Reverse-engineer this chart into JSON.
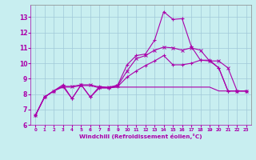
{
  "xlabel": "Windchill (Refroidissement éolien,°C)",
  "background_color": "#c8eef0",
  "grid_color": "#a0c8d8",
  "line_color": "#aa00aa",
  "xlim": [
    -0.5,
    23.5
  ],
  "ylim": [
    6.0,
    13.8
  ],
  "xticks": [
    0,
    1,
    2,
    3,
    4,
    5,
    6,
    7,
    8,
    9,
    10,
    11,
    12,
    13,
    14,
    15,
    16,
    17,
    18,
    19,
    20,
    21,
    22,
    23
  ],
  "yticks": [
    6,
    7,
    8,
    9,
    10,
    11,
    12,
    13
  ],
  "line_spike_x": [
    0,
    1,
    2,
    3,
    4,
    5,
    6,
    7,
    8,
    9,
    10,
    11,
    12,
    13,
    14,
    15,
    16,
    17,
    18,
    19,
    20,
    21,
    22,
    23
  ],
  "line_spike_y": [
    6.6,
    7.8,
    8.2,
    8.6,
    7.7,
    8.6,
    7.8,
    8.5,
    8.4,
    8.6,
    9.9,
    10.5,
    10.6,
    11.5,
    13.35,
    12.85,
    12.9,
    11.1,
    10.2,
    10.2,
    9.7,
    8.2,
    8.2,
    8.2
  ],
  "line_mid_x": [
    0,
    1,
    2,
    3,
    4,
    5,
    6,
    7,
    8,
    9,
    10,
    11,
    12,
    13,
    14,
    15,
    16,
    17,
    18,
    19,
    20,
    21,
    22,
    23
  ],
  "line_mid_y": [
    6.6,
    7.8,
    8.2,
    8.5,
    7.7,
    8.6,
    7.8,
    8.4,
    8.4,
    8.5,
    9.1,
    9.5,
    9.85,
    10.15,
    10.5,
    9.9,
    9.9,
    10.0,
    10.2,
    10.15,
    9.7,
    8.2,
    8.2,
    8.2
  ],
  "line_smooth_x": [
    0,
    1,
    2,
    3,
    4,
    5,
    6,
    7,
    8,
    9,
    10,
    11,
    12,
    13,
    14,
    15,
    16,
    17,
    18,
    19,
    20,
    21,
    22,
    23
  ],
  "line_smooth_y": [
    6.6,
    7.8,
    8.2,
    8.5,
    8.5,
    8.6,
    8.6,
    8.45,
    8.45,
    8.55,
    9.5,
    10.3,
    10.5,
    10.85,
    11.05,
    11.0,
    10.85,
    11.0,
    10.85,
    10.15,
    10.15,
    9.7,
    8.2,
    8.2
  ],
  "line_flat_x": [
    0,
    1,
    2,
    3,
    4,
    5,
    6,
    7,
    8,
    9,
    10,
    11,
    12,
    13,
    14,
    15,
    16,
    17,
    18,
    19,
    20,
    21,
    22,
    23
  ],
  "line_flat_y": [
    6.6,
    7.8,
    8.2,
    8.45,
    8.45,
    8.55,
    8.55,
    8.4,
    8.4,
    8.45,
    8.45,
    8.45,
    8.45,
    8.45,
    8.45,
    8.45,
    8.45,
    8.45,
    8.45,
    8.45,
    8.2,
    8.2,
    8.2,
    8.2
  ]
}
